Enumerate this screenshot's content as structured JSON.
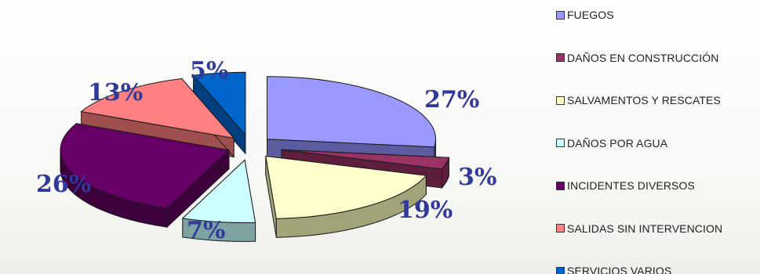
{
  "chart_data": {
    "type": "pie",
    "title": "",
    "legend_position": "right",
    "slices": [
      {
        "name": "FUEGOS",
        "value": 27,
        "label": "27%",
        "color": "#9999ff",
        "side_color": "#5c5ca0"
      },
      {
        "name": "DAÑOS EN CONSTRUCCIÓN",
        "value": 3,
        "label": "3%",
        "color": "#993366",
        "side_color": "#5e1f3e"
      },
      {
        "name": "SALVAMENTOS Y RESCATES",
        "value": 19,
        "label": "19%",
        "color": "#ffffcc",
        "side_color": "#a3a37a"
      },
      {
        "name": "DAÑOS POR AGUA",
        "value": 7,
        "label": "7%",
        "color": "#ccffff",
        "side_color": "#7fa3a3"
      },
      {
        "name": "INCIDENTES DIVERSOS",
        "value": 26,
        "label": "26%",
        "color": "#660066",
        "side_color": "#3d003d"
      },
      {
        "name": "SALIDAS SIN INTERVENCION",
        "value": 13,
        "label": "13%",
        "color": "#ff8080",
        "side_color": "#a04f4f"
      },
      {
        "name": "SERVICIOS VARIOS",
        "value": 5,
        "label": "5%",
        "color": "#0066cc",
        "side_color": "#003f80"
      }
    ]
  }
}
